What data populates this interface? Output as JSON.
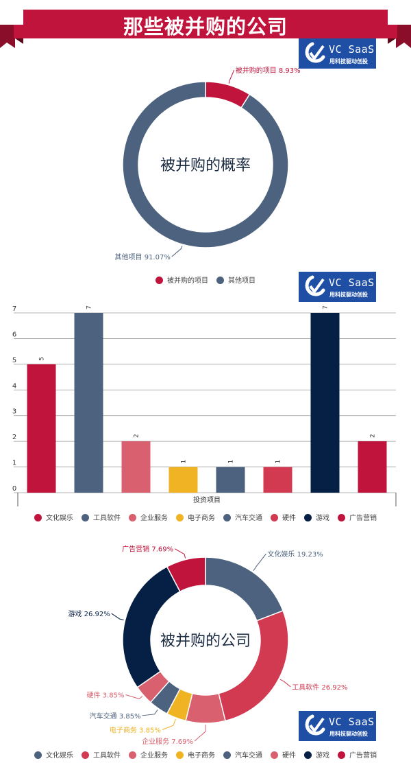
{
  "header": {
    "title": "那些被并购的公司"
  },
  "logo": {
    "name": "VC SaaS",
    "tagline": "用科技驱动创投",
    "bg_color": "#1f4fa5",
    "icon": "vc-saas-logo-mark"
  },
  "chart_data": [
    {
      "type": "pie",
      "donut": true,
      "center_label": "被并购的概率",
      "labels": [
        "被并购的项目",
        "其他项目"
      ],
      "values": [
        8.93,
        91.07
      ],
      "display": [
        "被并购的项目 8.93%",
        "其他项目 91.07%"
      ],
      "colors": [
        "#c0143c",
        "#4d627e"
      ],
      "legend_position": "bottom"
    },
    {
      "type": "bar",
      "categories": [
        "文化娱乐",
        "工具软件",
        "企业服务",
        "电子商务",
        "汽车交通",
        "硬件",
        "游戏",
        "广告营销"
      ],
      "values": [
        5,
        7,
        2,
        1,
        1,
        1,
        7,
        2
      ],
      "xlabel": "投资项目",
      "ylabel": "",
      "ylim": [
        0,
        7
      ],
      "yticks": [
        0,
        1,
        2,
        3,
        4,
        5,
        6,
        7
      ],
      "grid": true,
      "colors": [
        "#c0143c",
        "#4d627e",
        "#d9606e",
        "#f0b323",
        "#4d627e",
        "#d13a51",
        "#061f45",
        "#c0143c"
      ],
      "legend_position": "bottom"
    },
    {
      "type": "pie",
      "donut": true,
      "center_label": "被并购的公司",
      "labels": [
        "文化娱乐",
        "工具软件",
        "企业服务",
        "电子商务",
        "汽车交通",
        "硬件",
        "游戏",
        "广告营销"
      ],
      "values": [
        19.23,
        26.92,
        7.69,
        3.85,
        3.85,
        3.85,
        26.92,
        7.69
      ],
      "display": [
        "文化娱乐 19.23%",
        "工具软件 26.92%",
        "企业服务 7.69%",
        "电子商务 3.85%",
        "汽车交通 3.85%",
        "硬件 3.85%",
        "游戏 26.92%",
        "广告营销 7.69%"
      ],
      "colors": [
        "#4d627e",
        "#d13a51",
        "#d9606e",
        "#f0b323",
        "#4d627e",
        "#d9606e",
        "#061f45",
        "#c0143c"
      ],
      "legend_position": "bottom"
    }
  ]
}
